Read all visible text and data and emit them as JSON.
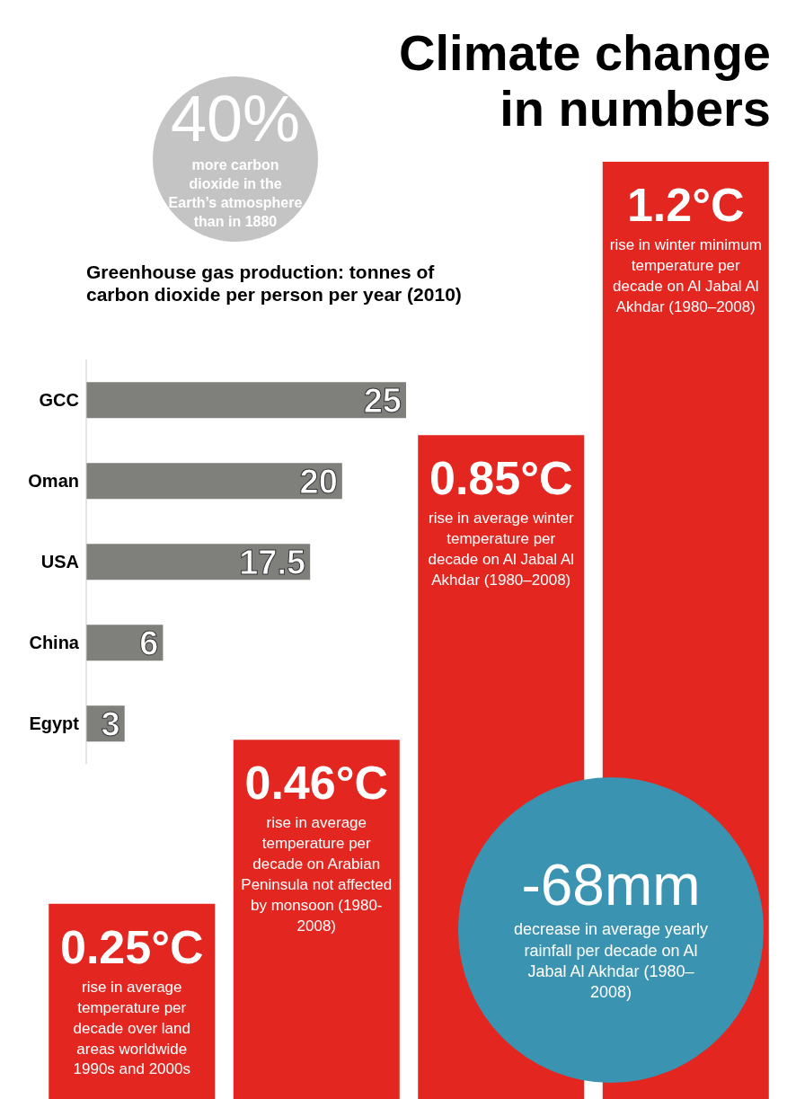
{
  "chart_data": [
    {
      "type": "other",
      "annotations": [
        "40%",
        "more carbon dioxide in the Earth’s atmosphere than in 1880"
      ]
    },
    {
      "type": "bar",
      "orientation": "horizontal",
      "title": "Greenhouse gas production: tonnes of carbon dioxide per person per year (2010)",
      "categories": [
        "GCC",
        "Oman",
        "USA",
        "China",
        "Egypt"
      ],
      "values": [
        25,
        20,
        17.5,
        6,
        3
      ],
      "color": "#7f807c",
      "data_labels": true
    },
    {
      "type": "bar",
      "title": "Climate change in numbers",
      "categories": [
        "rise in average temperature per decade over land areas worldwide 1990s and 2000s",
        "rise in average temperature per decade on Arabian Peninsula not affected by monsoon (1980-2008)",
        "rise in average winter temperature per decade on Al Jabal Al Akhdar (1980–2008)",
        "rise in winter minimum temperature per decade on Al Jabal Al Akhdar (1980–2008)"
      ],
      "values": [
        0.25,
        0.46,
        0.85,
        1.2
      ],
      "value_labels": [
        "0.25°C",
        "0.46°C",
        "0.85°C",
        "1.2°C"
      ],
      "color": "#e3261f"
    },
    {
      "type": "other",
      "annotations": [
        "-68mm",
        "decrease in average yearly rainfall per decade on Al Jabal Al Akhdar (1980–2008)"
      ]
    }
  ]
}
